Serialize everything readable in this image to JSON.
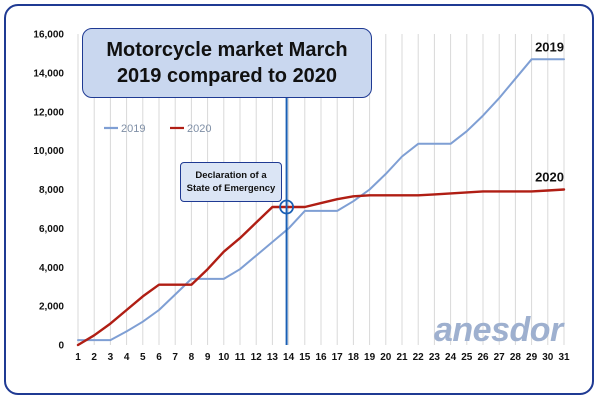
{
  "chart_data": {
    "type": "line",
    "title": [
      "Motorcycle market March",
      "2019 compared to 2020"
    ],
    "categories": [
      1,
      2,
      3,
      4,
      5,
      6,
      7,
      8,
      9,
      10,
      11,
      12,
      13,
      14,
      15,
      16,
      17,
      18,
      19,
      20,
      21,
      22,
      23,
      24,
      25,
      26,
      27,
      28,
      29,
      30,
      31
    ],
    "ylim": [
      0,
      16000
    ],
    "yticks": [
      0,
      2000,
      4000,
      6000,
      8000,
      10000,
      12000,
      14000,
      16000
    ],
    "ytick_labels": [
      "0",
      "2,000",
      "4,000",
      "6,000",
      "8,000",
      "10,000",
      "12,000",
      "14,000",
      "16,000"
    ],
    "xtick_labels": [
      "1",
      "2",
      "3",
      "4",
      "5",
      "6",
      "7",
      "8",
      "9",
      "10",
      "11",
      "12",
      "13",
      "14",
      "15",
      "16",
      "17",
      "18",
      "19",
      "20",
      "21",
      "22",
      "23",
      "24",
      "25",
      "26",
      "27",
      "28",
      "29",
      "30",
      "31"
    ],
    "grid": "vertical",
    "legend": "upper-left",
    "series": [
      {
        "name": "2019",
        "color": "#7f9fd4",
        "values": [
          250,
          250,
          250,
          700,
          1200,
          1800,
          2600,
          3400,
          3400,
          3400,
          3900,
          4600,
          5300,
          6000,
          6900,
          6900,
          6900,
          7400,
          8000,
          8800,
          9700,
          10350,
          10350,
          10350,
          11000,
          11800,
          12700,
          13700,
          14700,
          14700,
          14700
        ]
      },
      {
        "name": "2020",
        "color": "#b01e14",
        "values": [
          0,
          500,
          1100,
          1800,
          2500,
          3100,
          3100,
          3100,
          3900,
          4800,
          5500,
          6300,
          7100,
          7100,
          7100,
          7300,
          7500,
          7650,
          7700,
          7700,
          7700,
          7700,
          7750,
          7800,
          7850,
          7900,
          7900,
          7900,
          7900,
          7950,
          8000
        ]
      }
    ],
    "end_labels": [
      "2019",
      "2020"
    ],
    "annotation": {
      "lines": [
        "Declaration of a",
        "State of Emergency"
      ],
      "x": 14,
      "marker_y": 7100,
      "line_color": "#1a5fb4"
    },
    "brand": "anesdor"
  }
}
